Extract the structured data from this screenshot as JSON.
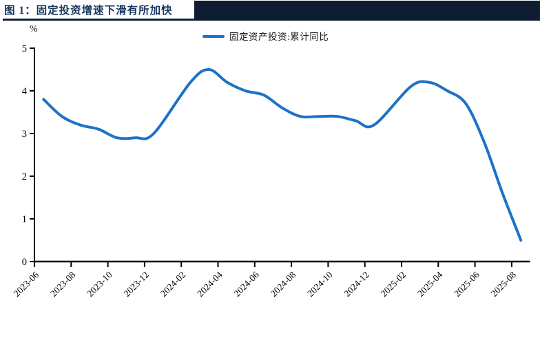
{
  "header": {
    "title": "图 1：固定投资增速下滑有所加快"
  },
  "colors": {
    "accent_navy": "#17375E",
    "header_bar": "#0f1d33",
    "line_blue": "#1d72c6",
    "axis": "#000000"
  },
  "chart_data": {
    "type": "line",
    "title": "图 1：固定投资增速下滑有所加快",
    "unit_label": "%",
    "legend": [
      {
        "label": "固定资产投资:累计同比",
        "color": "#1d72c6"
      }
    ],
    "ylim": [
      0,
      5
    ],
    "y_ticks": [
      0,
      1,
      2,
      3,
      4,
      5
    ],
    "x_tick_labels": [
      "2023-06",
      "2023-08",
      "2023-10",
      "2023-12",
      "2024-02",
      "2024-04",
      "2024-06",
      "2024-08",
      "2024-10",
      "2024-12",
      "2025-02",
      "2025-04",
      "2025-06",
      "2025-08"
    ],
    "months_total": 27,
    "tick_every_months": 2,
    "grid": false,
    "legend_position": "top-center",
    "smooth": true,
    "series": [
      {
        "name": "固定资产投资:累计同比",
        "color": "#1d72c6",
        "points": [
          {
            "month": "2023-06",
            "i": 0,
            "value": 3.8
          },
          {
            "month": "2023-07",
            "i": 1,
            "value": 3.4
          },
          {
            "month": "2023-08",
            "i": 2,
            "value": 3.2
          },
          {
            "month": "2023-09",
            "i": 3,
            "value": 3.1
          },
          {
            "month": "2023-10",
            "i": 4,
            "value": 2.9
          },
          {
            "month": "2023-11",
            "i": 5,
            "value": 2.9
          },
          {
            "month": "2023-12",
            "i": 6,
            "value": 3.0
          },
          {
            "month": "2024-02",
            "i": 8,
            "value": 4.2
          },
          {
            "month": "2024-03",
            "i": 9,
            "value": 4.5
          },
          {
            "month": "2024-04",
            "i": 10,
            "value": 4.2
          },
          {
            "month": "2024-05",
            "i": 11,
            "value": 4.0
          },
          {
            "month": "2024-06",
            "i": 12,
            "value": 3.9
          },
          {
            "month": "2024-07",
            "i": 13,
            "value": 3.6
          },
          {
            "month": "2024-08",
            "i": 14,
            "value": 3.4
          },
          {
            "month": "2024-09",
            "i": 15,
            "value": 3.4
          },
          {
            "month": "2024-10",
            "i": 16,
            "value": 3.4
          },
          {
            "month": "2024-11",
            "i": 17,
            "value": 3.3
          },
          {
            "month": "2024-12",
            "i": 18,
            "value": 3.2
          },
          {
            "month": "2025-02",
            "i": 20,
            "value": 4.1
          },
          {
            "month": "2025-03",
            "i": 21,
            "value": 4.2
          },
          {
            "month": "2025-04",
            "i": 22,
            "value": 4.0
          },
          {
            "month": "2025-05",
            "i": 23,
            "value": 3.7
          },
          {
            "month": "2025-06",
            "i": 24,
            "value": 2.8
          },
          {
            "month": "2025-07",
            "i": 25,
            "value": 1.6
          },
          {
            "month": "2025-08",
            "i": 26,
            "value": 0.5
          }
        ]
      }
    ]
  }
}
